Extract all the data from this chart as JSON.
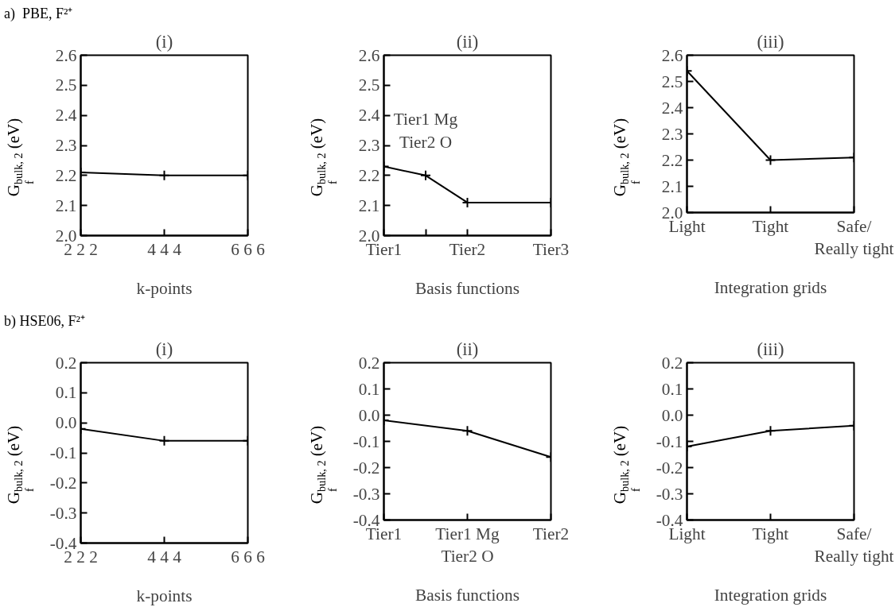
{
  "chart_data": [
    {
      "type": "line",
      "title": "(i)",
      "xlabel": "k-points",
      "ylabel": "G$_{f}$$^{bulk, 2}$ (eV)",
      "annotations": [
        "a)  PBE, F²⁺"
      ],
      "categories": [
        "2 2 2",
        "4 4 4",
        "6 6 6"
      ],
      "values": [
        2.21,
        2.2,
        2.2
      ],
      "color": "#000000",
      "marker": "cross",
      "grid": false,
      "ylim": [
        2.0,
        2.6
      ],
      "yticks": [
        {
          "value": 2.0,
          "label": "2.0"
        },
        {
          "value": 2.1,
          "label": "2.1"
        },
        {
          "value": 2.2,
          "label": "2.2"
        },
        {
          "value": 2.3,
          "label": "2.3"
        },
        {
          "value": 2.4,
          "label": "2.4"
        },
        {
          "value": 2.5,
          "label": "2.5"
        },
        {
          "value": 2.6,
          "label": "2.6"
        }
      ]
    },
    {
      "type": "line",
      "title": "(ii)",
      "xlabel": "Basis functions",
      "ylabel": "G$_{f}$$^{bulk, 2}$ (eV)",
      "annotations": [
        {
          "text": "Tier1 Mg\nTier2 O",
          "y": 2.2
        }
      ],
      "categories": [
        "Tier1",
        null,
        "Tier2",
        null,
        "Tier3"
      ],
      "values": [
        2.23,
        2.2,
        2.11,
        null,
        2.11
      ],
      "color": "#000000",
      "marker": "cross",
      "grid": false,
      "ylim": [
        2.0,
        2.6
      ],
      "yticks": [
        {
          "value": 2.0,
          "label": "2.0"
        },
        {
          "value": 2.1,
          "label": "2.1"
        },
        {
          "value": 2.2,
          "label": "2.2"
        },
        {
          "value": 2.3,
          "label": "2.3"
        },
        {
          "value": 2.4,
          "label": "2.4"
        },
        {
          "value": 2.5,
          "label": "2.5"
        },
        {
          "value": 2.6,
          "label": "2.6"
        }
      ]
    },
    {
      "type": "line",
      "title": "(iii)",
      "xlabel": "Integration grids",
      "ylabel": "G$_{f}$$^{bulk, 2}$ (eV)",
      "categories": [
        "Light",
        "Tight",
        "Safe/\nReally tight"
      ],
      "values": [
        2.54,
        2.2,
        2.21
      ],
      "color": "#000000",
      "marker": "cross",
      "grid": false,
      "ylim": [
        2.0,
        2.6
      ],
      "yticks": [
        {
          "value": 2.0,
          "label": "2.0"
        },
        {
          "value": 2.1,
          "label": "2.1"
        },
        {
          "value": 2.2,
          "label": "2.2"
        },
        {
          "value": 2.3,
          "label": "2.3"
        },
        {
          "value": 2.4,
          "label": "2.4"
        },
        {
          "value": 2.5,
          "label": "2.5"
        },
        {
          "value": 2.6,
          "label": "2.6"
        }
      ]
    },
    {
      "type": "line",
      "title": "(i)",
      "xlabel": "k-points",
      "ylabel": "G$_{f}$$^{bulk, 2}$ (eV)",
      "annotations": [
        "b) HSE06, F²⁺"
      ],
      "categories": [
        "2 2 2",
        "4 4 4",
        "6 6 6"
      ],
      "values": [
        -0.02,
        -0.06,
        -0.06
      ],
      "color": "#000000",
      "marker": "cross",
      "grid": false,
      "ylim": [
        -0.4,
        0.2
      ],
      "yticks": [
        {
          "value": -0.4,
          "label": "-0.4"
        },
        {
          "value": -0.3,
          "label": "-0.3"
        },
        {
          "value": -0.2,
          "label": "-0.2"
        },
        {
          "value": -0.1,
          "label": "-0.1"
        },
        {
          "value": 0,
          "label": "0.0"
        },
        {
          "value": 0.1,
          "label": "0.1"
        },
        {
          "value": 0.2,
          "label": "0.2"
        }
      ]
    },
    {
      "type": "line",
      "title": "(ii)",
      "xlabel": "Basis functions",
      "ylabel": "G$_{f}$$^{bulk, 2}$ (eV)",
      "categories": [
        "Tier1",
        "Tier1 Mg\nTier2 O",
        "Tier2"
      ],
      "values": [
        -0.02,
        -0.06,
        -0.16
      ],
      "color": "#000000",
      "marker": "cross",
      "grid": false,
      "ylim": [
        -0.4,
        0.2
      ],
      "yticks": [
        {
          "value": -0.4,
          "label": "-0.4"
        },
        {
          "value": -0.3,
          "label": "-0.3"
        },
        {
          "value": -0.2,
          "label": "-0.2"
        },
        {
          "value": -0.1,
          "label": "-0.1"
        },
        {
          "value": 0,
          "label": "0.0"
        },
        {
          "value": 0.1,
          "label": "0.1"
        },
        {
          "value": 0.2,
          "label": "0.2"
        }
      ]
    },
    {
      "type": "line",
      "title": "(iii)",
      "xlabel": "Integration grids",
      "ylabel": "G$_{f}$$^{bulk, 2}$ (eV)",
      "categories": [
        "Light",
        "Tight",
        "Safe/\nReally tight"
      ],
      "values": [
        -0.12,
        -0.06,
        -0.04
      ],
      "color": "#000000",
      "marker": "cross",
      "grid": false,
      "ylim": [
        -0.4,
        0.2
      ],
      "yticks": [
        {
          "value": -0.4,
          "label": "-0.4"
        },
        {
          "value": -0.3,
          "label": "-0.3"
        },
        {
          "value": -0.2,
          "label": "-0.2"
        },
        {
          "value": -0.1,
          "label": "-0.1"
        },
        {
          "value": 0,
          "label": "0.0"
        },
        {
          "value": 0.1,
          "label": "0.1"
        },
        {
          "value": 0.2,
          "label": "0.2"
        }
      ]
    }
  ]
}
